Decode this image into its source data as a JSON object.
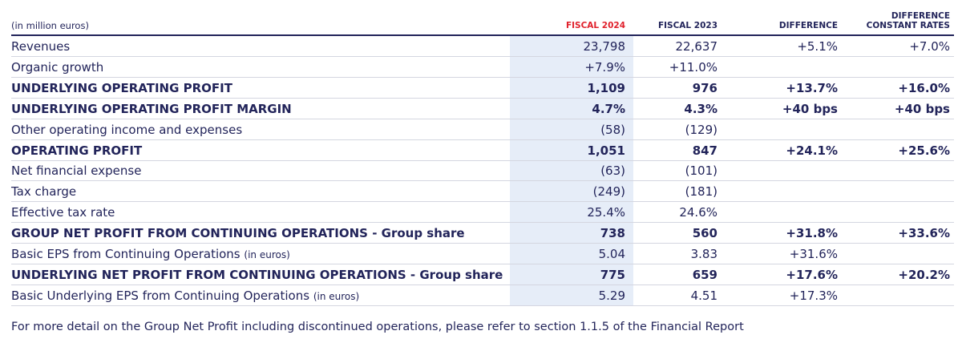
{
  "header": {
    "unit": "(in million euros)"
  },
  "table": {
    "columns": [
      [
        "FISCAL 2024"
      ],
      [
        "FISCAL 2023"
      ],
      [
        "DIFFERENCE"
      ],
      [
        "DIFFERENCE",
        "CONSTANT RATES"
      ]
    ],
    "rows": [
      {
        "label": "Revenues",
        "bold": false,
        "cells": [
          "23,798",
          "22,637",
          "+5.1%",
          "+7.0%"
        ]
      },
      {
        "label": "Organic growth",
        "bold": false,
        "cells": [
          "+7.9%",
          "+11.0%",
          null,
          null
        ]
      },
      {
        "label": "UNDERLYING OPERATING PROFIT",
        "bold": true,
        "cells": [
          "1,109",
          "976",
          "+13.7%",
          "+16.0%"
        ]
      },
      {
        "label": "UNDERLYING OPERATING PROFIT MARGIN",
        "bold": true,
        "cells": [
          "4.7%",
          "4.3%",
          "+40 bps",
          "+40 bps"
        ]
      },
      {
        "label": "Other operating income and expenses",
        "bold": false,
        "cells": [
          "(58)",
          "(129)",
          null,
          null
        ]
      },
      {
        "label": "OPERATING PROFIT",
        "bold": true,
        "cells": [
          "1,051",
          "847",
          "+24.1%",
          "+25.6%"
        ]
      },
      {
        "label": "Net financial expense",
        "bold": false,
        "cells": [
          "(63)",
          "(101)",
          null,
          null
        ]
      },
      {
        "label": "Tax charge",
        "bold": false,
        "cells": [
          "(249)",
          "(181)",
          null,
          null
        ]
      },
      {
        "label": "Effective tax rate",
        "bold": false,
        "cells": [
          "25.4%",
          "24.6%",
          null,
          null
        ]
      },
      {
        "label": "GROUP NET PROFIT FROM CONTINUING OPERATIONS - Group share",
        "bold": true,
        "cells": [
          "738",
          "560",
          "+31.8%",
          "+33.6%"
        ]
      },
      {
        "label": "Basic EPS from Continuing Operations",
        "note": "(in euros)",
        "bold": false,
        "cells": [
          "5.04",
          "3.83",
          "+31.6%",
          null
        ]
      },
      {
        "label": "UNDERLYING NET PROFIT FROM CONTINUING OPERATIONS - Group share",
        "bold": true,
        "cells": [
          "775",
          "659",
          "+17.6%",
          "+20.2%"
        ]
      },
      {
        "label": "Basic Underlying EPS from Continuing Operations",
        "note": "(in euros)",
        "bold": false,
        "cells": [
          "5.29",
          "4.51",
          "+17.3%",
          null
        ]
      }
    ]
  },
  "footnote": "For more detail on the Group Net Profit including discontinued operations, please refer to section 1.1.5 of the Financial Report"
}
